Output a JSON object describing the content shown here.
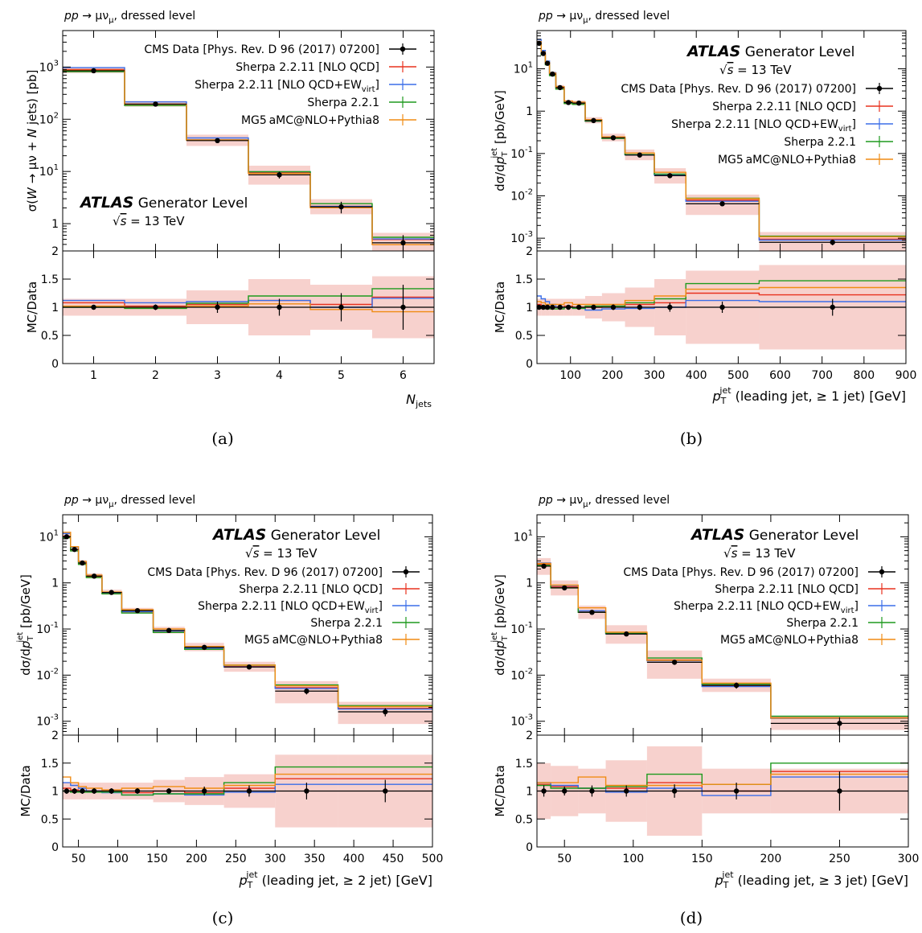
{
  "figure": {
    "panel_labels": [
      "(a)",
      "(b)",
      "(c)",
      "(d)"
    ]
  },
  "colors": {
    "data": "#000000",
    "sherpa_nlo_qcd": "#e8321f",
    "sherpa_nlo_qcd_ew": "#3b6ee8",
    "sherpa_221": "#1e9a1e",
    "mg5": "#f08c14",
    "uncertainty_band": "#f4c2bc"
  },
  "chart_data": [
    {
      "type": "line",
      "process": "pp → μν, dressed level",
      "atlas": "ATLAS",
      "generator_level": "Generator Level",
      "energy": "√s = 13 TeV",
      "xlabel": "N_jets",
      "ylabel": "σ(W → μν + N jets) [pb]",
      "ratio_ylabel": "MC/Data",
      "xlim": [
        0.5,
        6.5
      ],
      "ylim": [
        0.3,
        5000
      ],
      "ylog": true,
      "ratio_ylim": [
        0,
        2
      ],
      "xticks": [
        1,
        2,
        3,
        4,
        5,
        6
      ],
      "yticks": [
        {
          "v": 1,
          "l": "1"
        },
        {
          "v": 10,
          "l": "10^1"
        },
        {
          "v": 100,
          "l": "10^2"
        },
        {
          "v": 1000,
          "l": "10^3"
        }
      ],
      "ratio_ticks": [
        "0",
        "0.5",
        "1",
        "1.5",
        "2"
      ],
      "legend_entries": [
        "CMS Data [Phys. Rev. D 96 (2017) 07200]",
        "Sherpa 2.2.11 [NLO QCD]",
        "Sherpa 2.2.11 [NLO QCD+EW_virt]",
        "Sherpa 2.2.1",
        "MG5_aMC@NLO+Pythia8"
      ],
      "edges": [
        0.5,
        1.5,
        2.5,
        3.5,
        4.5,
        5.5,
        6.5
      ],
      "data_x": [
        1,
        2,
        3,
        4,
        5,
        6
      ],
      "data": [
        850,
        195,
        39,
        8.6,
        2.1,
        0.43
      ],
      "data_err": [
        0.03,
        0.05,
        0.1,
        0.15,
        0.25,
        0.4
      ],
      "band": [
        0.15,
        0.15,
        0.3,
        0.5,
        0.4,
        0.55
      ],
      "ratios": {
        "sherpa_nlo_qcd": [
          1.08,
          1.02,
          1.05,
          1.12,
          1.05,
          1.18
        ],
        "sherpa_nlo_qcd_ew": [
          1.12,
          1.08,
          1.1,
          1.12,
          1.0,
          1.16
        ],
        "sherpa_221": [
          1.0,
          0.98,
          1.07,
          1.2,
          1.2,
          1.33
        ],
        "mg5": [
          1.02,
          1.0,
          1.02,
          1.06,
          0.96,
          0.92
        ]
      }
    },
    {
      "type": "line",
      "process": "pp → μν, dressed level",
      "atlas": "ATLAS",
      "generator_level": "Generator Level",
      "energy": "√s = 13 TeV",
      "xlabel": "p_T^jet (leading jet, ≥ 1 jet) [GeV]",
      "ylabel": "dσ/dp_T^jet [pb/GeV]",
      "ratio_ylabel": "MC/Data",
      "xlim": [
        20,
        900
      ],
      "ylim": [
        0.0005,
        80
      ],
      "ylog": true,
      "ratio_ylim": [
        0,
        2
      ],
      "xticks": [
        100,
        200,
        300,
        400,
        500,
        600,
        700,
        800,
        900
      ],
      "yticks": [
        {
          "v": 0.001,
          "l": "10^-3"
        },
        {
          "v": 0.01,
          "l": "10^-2"
        },
        {
          "v": 0.1,
          "l": "10^-1"
        },
        {
          "v": 1,
          "l": "1"
        },
        {
          "v": 10,
          "l": "10^1"
        }
      ],
      "ratio_ticks": [
        "0",
        "0.5",
        "1",
        "1.5",
        "2"
      ],
      "legend_entries": [
        "CMS Data [Phys. Rev. D 96 (2017) 07200]",
        "Sherpa 2.2.11 [NLO QCD]",
        "Sherpa 2.2.11 [NLO QCD+EW_virt]",
        "Sherpa 2.2.1",
        "MG5_aMC@NLO+Pythia8"
      ],
      "edges": [
        20,
        30,
        40,
        50,
        65,
        85,
        105,
        135,
        175,
        230,
        300,
        375,
        550,
        900
      ],
      "data_x": [
        25,
        35,
        45,
        57,
        75,
        95,
        120,
        155,
        202,
        265,
        337,
        462,
        725
      ],
      "data": [
        40,
        23,
        13.5,
        7.5,
        3.6,
        1.6,
        1.55,
        0.6,
        0.235,
        0.092,
        0.03,
        0.0065,
        0.0008
      ],
      "data_err": [
        0.03,
        0.03,
        0.03,
        0.03,
        0.03,
        0.03,
        0.03,
        0.03,
        0.05,
        0.05,
        0.08,
        0.1,
        0.15
      ],
      "band": [
        0.15,
        0.15,
        0.15,
        0.15,
        0.15,
        0.15,
        0.15,
        0.2,
        0.25,
        0.35,
        0.5,
        0.65,
        0.75
      ],
      "ratios": {
        "sherpa_nlo_qcd": [
          1.05,
          1.02,
          1.0,
          1.0,
          1.0,
          1.02,
          1.0,
          1.0,
          1.02,
          1.05,
          1.08,
          1.25,
          1.22
        ],
        "sherpa_nlo_qcd_ew": [
          1.2,
          1.15,
          1.1,
          1.05,
          1.0,
          1.0,
          0.98,
          0.95,
          0.97,
          0.98,
          1.0,
          1.12,
          1.1
        ],
        "sherpa_221": [
          1.0,
          0.98,
          0.97,
          0.97,
          0.97,
          1.0,
          0.98,
          1.02,
          1.02,
          1.08,
          1.15,
          1.42,
          1.47
        ],
        "mg5": [
          1.1,
          1.08,
          1.05,
          1.05,
          1.05,
          1.08,
          1.05,
          1.05,
          1.05,
          1.12,
          1.2,
          1.32,
          1.35
        ]
      }
    },
    {
      "type": "line",
      "process": "pp → μν, dressed level",
      "atlas": "ATLAS",
      "generator_level": "Generator Level",
      "energy": "√s = 13 TeV",
      "xlabel": "p_T^jet (leading jet, ≥ 2 jet) [GeV]",
      "ylabel": "dσ/dp_T^jet [pb/GeV]",
      "ratio_ylabel": "MC/Data",
      "xlim": [
        30,
        500
      ],
      "ylim": [
        0.0005,
        30
      ],
      "ylog": true,
      "ratio_ylim": [
        0,
        2
      ],
      "xticks": [
        50,
        100,
        150,
        200,
        250,
        300,
        350,
        400,
        450,
        500
      ],
      "yticks": [
        {
          "v": 0.001,
          "l": "10^-3"
        },
        {
          "v": 0.01,
          "l": "10^-2"
        },
        {
          "v": 0.1,
          "l": "10^-1"
        },
        {
          "v": 1,
          "l": "1"
        },
        {
          "v": 10,
          "l": "10^1"
        }
      ],
      "ratio_ticks": [
        "0",
        "0.5",
        "1",
        "1.5",
        "2"
      ],
      "legend_entries": [
        "CMS Data [Phys. Rev. D 96 (2017) 07200]",
        "Sherpa 2.2.11 [NLO QCD]",
        "Sherpa 2.2.11 [NLO QCD+EW_virt]",
        "Sherpa 2.2.1",
        "MG5_aMC@NLO+Pythia8"
      ],
      "edges": [
        30,
        40,
        50,
        60,
        80,
        105,
        145,
        185,
        235,
        300,
        380,
        500
      ],
      "data_x": [
        35,
        45,
        55,
        70,
        92,
        125,
        165,
        210,
        267,
        340,
        440
      ],
      "data": [
        10,
        5.3,
        2.7,
        1.4,
        0.62,
        0.25,
        0.093,
        0.04,
        0.015,
        0.0045,
        0.0016
      ],
      "data_err": [
        0.05,
        0.05,
        0.05,
        0.05,
        0.05,
        0.05,
        0.05,
        0.08,
        0.1,
        0.15,
        0.2
      ],
      "band": [
        0.15,
        0.15,
        0.15,
        0.15,
        0.15,
        0.15,
        0.2,
        0.25,
        0.3,
        0.65,
        0.65
      ],
      "ratios": {
        "sherpa_nlo_qcd": [
          1.05,
          1.02,
          1.0,
          1.0,
          1.0,
          0.97,
          1.0,
          0.97,
          1.05,
          1.22,
          1.22
        ],
        "sherpa_nlo_qcd_ew": [
          1.15,
          1.1,
          1.05,
          1.0,
          0.97,
          0.93,
          0.95,
          0.93,
          0.98,
          1.12,
          1.12
        ],
        "sherpa_221": [
          1.0,
          0.98,
          0.98,
          0.98,
          0.98,
          0.93,
          0.95,
          0.95,
          1.15,
          1.43,
          1.43
        ],
        "mg5": [
          1.25,
          1.15,
          1.08,
          1.05,
          1.02,
          1.05,
          1.08,
          1.05,
          1.1,
          1.3,
          1.3
        ]
      }
    },
    {
      "type": "line",
      "process": "pp → μν, dressed level",
      "atlas": "ATLAS",
      "generator_level": "Generator Level",
      "energy": "√s = 13 TeV",
      "xlabel": "p_T^jet (leading jet, ≥ 3 jet) [GeV]",
      "ylabel": "dσ/dp_T^jet [pb/GeV]",
      "ratio_ylabel": "MC/Data",
      "xlim": [
        30,
        300
      ],
      "ylim": [
        0.0005,
        30
      ],
      "ylog": true,
      "ratio_ylim": [
        0,
        2
      ],
      "xticks": [
        50,
        100,
        150,
        200,
        250,
        300
      ],
      "yticks": [
        {
          "v": 0.001,
          "l": "10^-3"
        },
        {
          "v": 0.01,
          "l": "10^-2"
        },
        {
          "v": 0.1,
          "l": "10^-1"
        },
        {
          "v": 1,
          "l": "1"
        },
        {
          "v": 10,
          "l": "10^1"
        }
      ],
      "ratio_ticks": [
        "0",
        "0.5",
        "1",
        "1.5",
        "2"
      ],
      "legend_entries": [
        "CMS Data [Phys. Rev. D 96 (2017) 07200]",
        "Sherpa 2.2.11 [NLO QCD]",
        "Sherpa 2.2.11 [NLO QCD+EW_virt]",
        "Sherpa 2.2.1",
        "MG5_aMC@NLO+Pythia8"
      ],
      "edges": [
        30,
        40,
        60,
        80,
        110,
        150,
        200,
        300
      ],
      "data_x": [
        35,
        50,
        70,
        95,
        130,
        175,
        250
      ],
      "data": [
        2.3,
        0.78,
        0.23,
        0.078,
        0.019,
        0.006,
        0.0009
      ],
      "data_err": [
        0.1,
        0.08,
        0.1,
        0.1,
        0.12,
        0.15,
        0.35
      ],
      "band": [
        0.5,
        0.45,
        0.4,
        0.55,
        0.8,
        0.4,
        0.4
      ],
      "ratios": {
        "sherpa_nlo_qcd": [
          1.12,
          1.08,
          1.05,
          1.05,
          1.15,
          1.0,
          1.35
        ],
        "sherpa_nlo_qcd_ew": [
          1.15,
          1.1,
          1.05,
          0.98,
          1.05,
          0.92,
          1.25
        ],
        "sherpa_221": [
          1.1,
          1.05,
          1.05,
          1.08,
          1.3,
          1.12,
          1.5
        ],
        "mg5": [
          1.15,
          1.15,
          1.25,
          1.1,
          1.1,
          1.12,
          1.3
        ]
      }
    }
  ]
}
